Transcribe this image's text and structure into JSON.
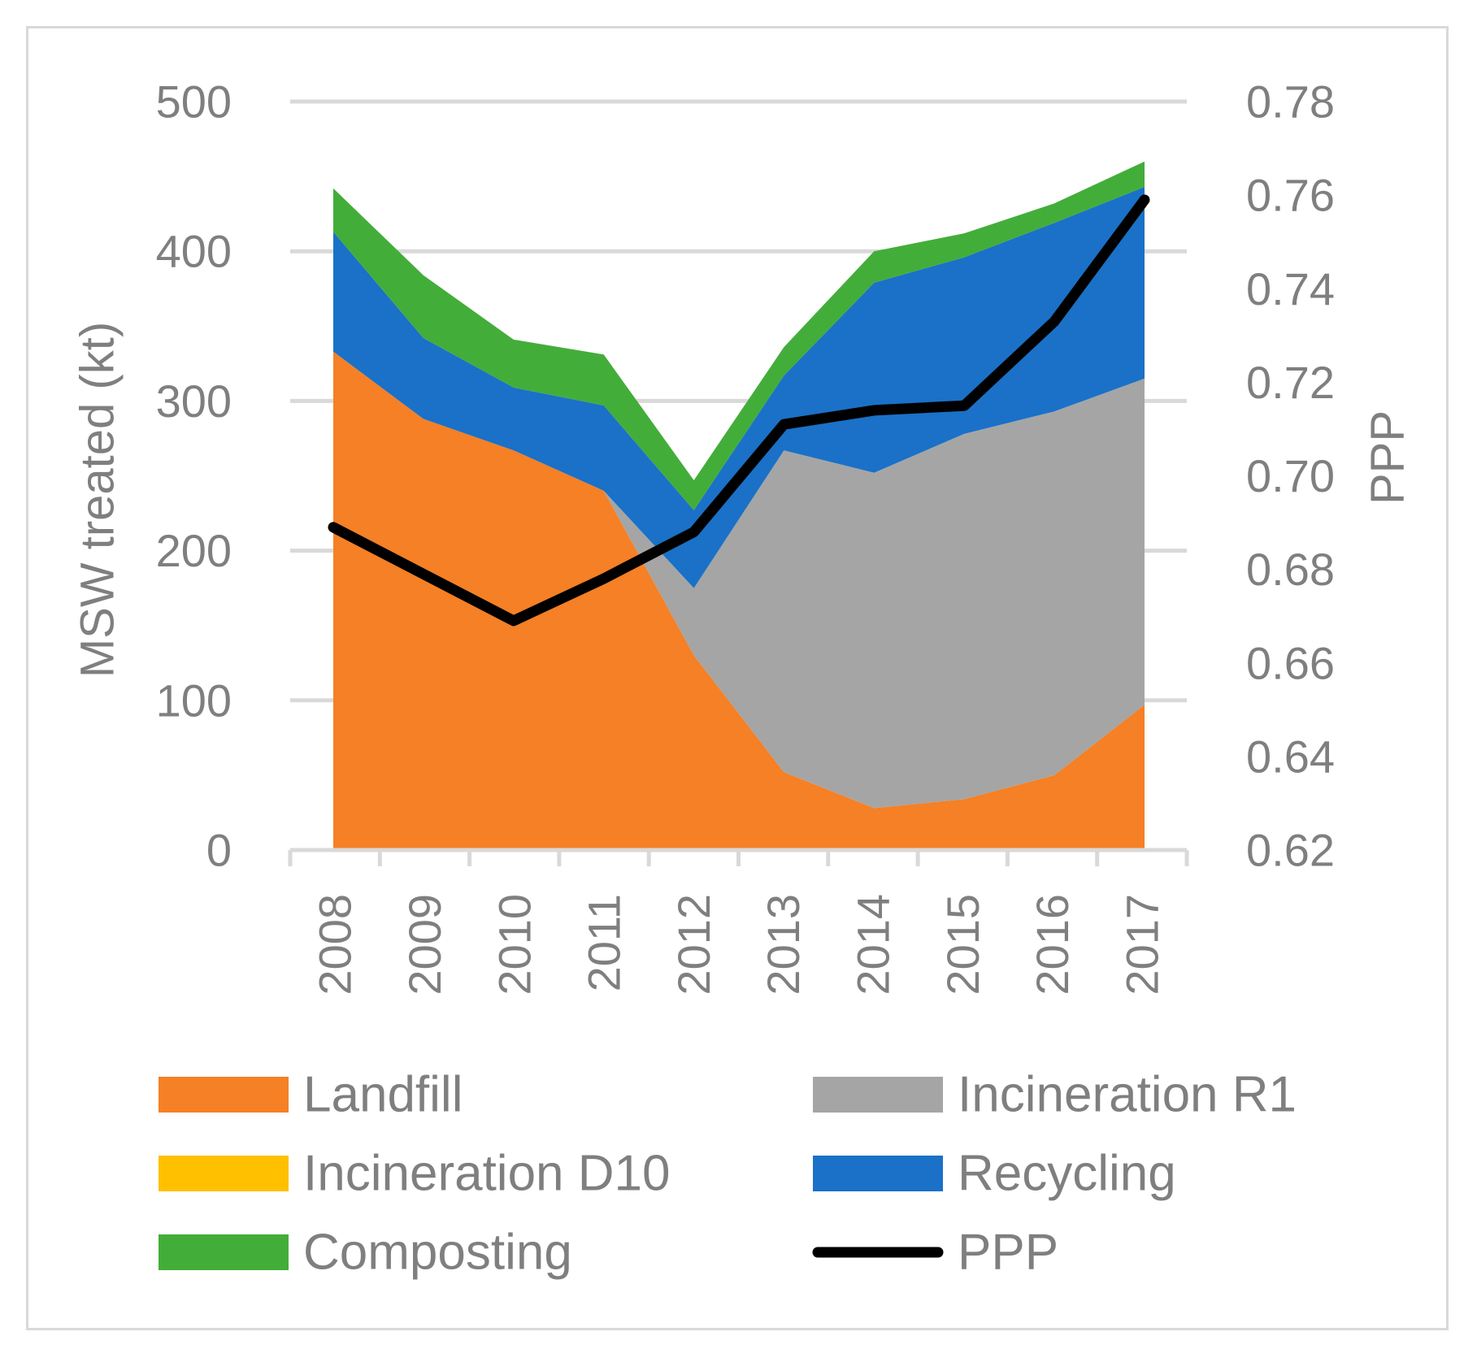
{
  "chart_data": {
    "type": "area",
    "categories": [
      "2008",
      "2009",
      "2010",
      "2011",
      "2012",
      "2013",
      "2014",
      "2015",
      "2016",
      "2017"
    ],
    "series": [
      {
        "name": "Landfill",
        "color": "#f58025",
        "values": [
          333,
          288,
          267,
          240,
          130,
          52,
          28,
          34,
          50,
          97
        ]
      },
      {
        "name": "Incineration R1",
        "color": "#a5a5a5",
        "values": [
          0,
          0,
          0,
          0,
          45,
          215,
          224,
          244,
          243,
          218
        ]
      },
      {
        "name": "Incineration D10",
        "color": "#ffc000",
        "values": [
          0,
          0,
          0,
          0,
          0,
          0,
          0,
          0,
          0,
          0
        ]
      },
      {
        "name": "Recycling",
        "color": "#1a71c7",
        "values": [
          80,
          54,
          42,
          57,
          52,
          50,
          127,
          118,
          126,
          128
        ]
      },
      {
        "name": "Composting",
        "color": "#43ad3a",
        "values": [
          29,
          42,
          32,
          34,
          20,
          19,
          21,
          16,
          13,
          17
        ]
      }
    ],
    "line_series": {
      "name": "PPP",
      "color": "#000000",
      "axis": "right",
      "values": [
        0.689,
        0.679,
        0.669,
        0.678,
        0.688,
        0.711,
        0.714,
        0.715,
        0.733,
        0.759
      ]
    },
    "ylabel": "MSW treated (kt)",
    "ylabel_right": "PPP",
    "ylim": [
      0,
      500
    ],
    "ylim_right": [
      0.62,
      0.78
    ],
    "yticks": [
      "0",
      "100",
      "200",
      "300",
      "400",
      "500"
    ],
    "yticks_right": [
      "0.62",
      "0.64",
      "0.66",
      "0.68",
      "0.70",
      "0.72",
      "0.74",
      "0.76",
      "0.78"
    ],
    "grid": true,
    "legend": [
      {
        "label": "Landfill",
        "kind": "area",
        "color": "#f58025"
      },
      {
        "label": "Incineration R1",
        "kind": "area",
        "color": "#a5a5a5"
      },
      {
        "label": "Incineration D10",
        "kind": "area",
        "color": "#ffc000"
      },
      {
        "label": "Recycling",
        "kind": "area",
        "color": "#1a71c7"
      },
      {
        "label": "Composting",
        "kind": "area",
        "color": "#43ad3a"
      },
      {
        "label": "PPP",
        "kind": "line",
        "color": "#000000"
      }
    ],
    "legend_position": "bottom"
  }
}
